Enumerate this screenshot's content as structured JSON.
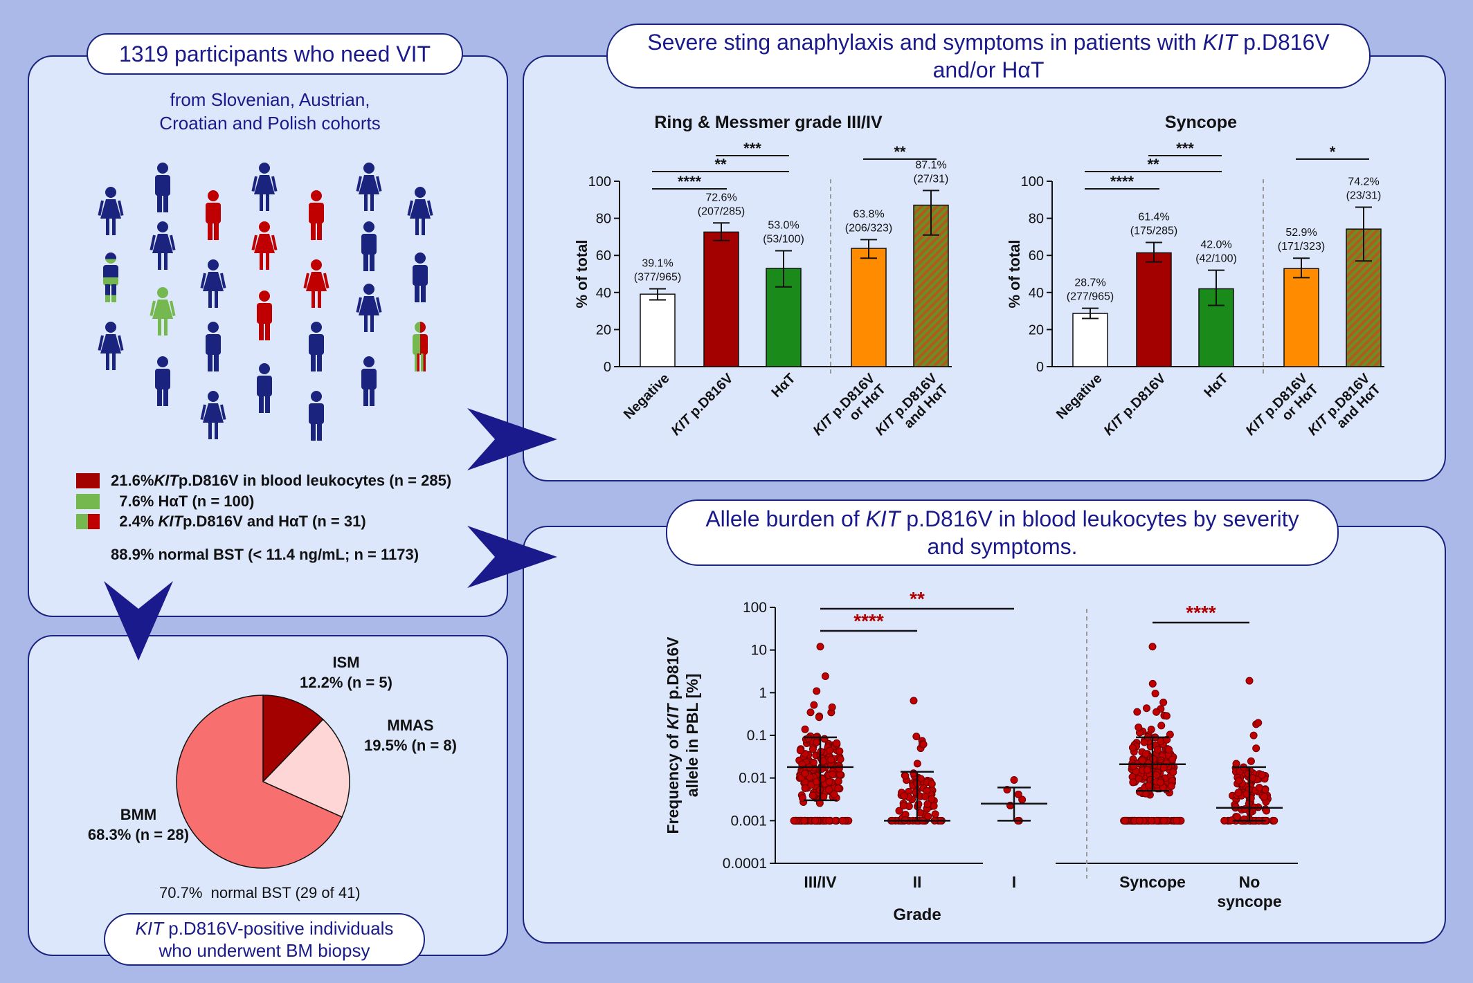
{
  "colors": {
    "background": "#aab9e8",
    "panel": "#dde7fb",
    "navy": "#1a237e",
    "kit": "#a30000",
    "hat": "#1a8a1a",
    "hat_light": "#74b84f",
    "orange": "#ff8c00",
    "pie_bmm": "#f86f6f",
    "pie_ism": "#a30000",
    "pie_mmas": "#ffd6d6"
  },
  "left_top": {
    "title": "1319 participants who need VIT",
    "subtitle_line1": "from Slovenian, Austrian,",
    "subtitle_line2": "Croatian and Polish cohorts",
    "legend": [
      {
        "prefix": "21.6% ",
        "italic": "KIT",
        "text": " p.D816V in blood leukocytes  (n = 285)"
      },
      {
        "prefix": "  7.6% HαT (n = 100)",
        "italic": "",
        "text": ""
      },
      {
        "prefix": "  2.4% ",
        "italic": "KIT",
        "text": " p.D816V and HαT (n = 31)"
      }
    ],
    "normal_bst": "88.9% normal BST (< 11.4 ng/mL; n = 1173)"
  },
  "left_bottom": {
    "title_italic": "KIT",
    "title_rest": " p.D816V-positive individuals",
    "title_line2": "who underwent BM biopsy",
    "normal_bst": "70.7%  normal BST (29 of 41)",
    "pie_labels": {
      "ism_name": "ISM",
      "ism_value": "12.2% (n = 5)",
      "mmas_name": "MMAS",
      "mmas_value": "19.5% (n = 8)",
      "bmm_name": "BMM",
      "bmm_value": "68.3% (n = 28)"
    }
  },
  "right_top": {
    "title_line1_a": "Severe sting anaphylaxis and symptoms in patients with ",
    "title_line1_italic": "KIT",
    "title_line1_b": " p.D816V",
    "title_line2": "and/or HαT"
  },
  "right_bottom": {
    "title_line1_a": "Allele burden of ",
    "title_line1_italic": "KIT",
    "title_line1_b": " p.D816V in blood leukocytes by severity",
    "title_line2": "and symptoms."
  },
  "chart_data": [
    {
      "type": "bar",
      "title": "Ring & Messmer grade III/IV",
      "ylabel": "% of total",
      "ylim": [
        0,
        100
      ],
      "yticks": [
        "0",
        "20",
        "40",
        "60",
        "80",
        "100"
      ],
      "categories": [
        "Negative",
        "KIT p.D816V",
        "HαT",
        "KIT p.D816V or HαT",
        "KIT p.D816V and HαT"
      ],
      "values": [
        39.1,
        72.6,
        53.0,
        63.8,
        87.1
      ],
      "error": [
        [
          36,
          42
        ],
        [
          68,
          77.5
        ],
        [
          43,
          62.5
        ],
        [
          58.5,
          68.5
        ],
        [
          71,
          95
        ]
      ],
      "pct_labels": [
        "39.1%",
        "72.6%",
        "53.0%",
        "63.8%",
        "87.1%"
      ],
      "n_labels": [
        "(377/965)",
        "(207/285)",
        "(53/100)",
        "(206/323)",
        "(27/31)"
      ],
      "significance": [
        {
          "label": "***",
          "from": 1,
          "to": 2
        },
        {
          "label": "**",
          "from": 0,
          "to": 2
        },
        {
          "label": "****",
          "from": 0,
          "to": 1
        },
        {
          "label": "**",
          "from": 3,
          "to": 4
        }
      ]
    },
    {
      "type": "bar",
      "title": "Syncope",
      "ylabel": "% of total",
      "ylim": [
        0,
        100
      ],
      "yticks": [
        "0",
        "20",
        "40",
        "60",
        "80",
        "100"
      ],
      "categories": [
        "Negative",
        "KIT p.D816V",
        "HαT",
        "KIT p.D816V or HαT",
        "KIT p.D816V and HαT"
      ],
      "values": [
        28.7,
        61.4,
        42.0,
        52.9,
        74.2
      ],
      "error": [
        [
          26,
          31.5
        ],
        [
          56.5,
          67
        ],
        [
          33,
          52
        ],
        [
          48,
          58.5
        ],
        [
          57,
          86
        ]
      ],
      "pct_labels": [
        "28.7%",
        "61.4%",
        "42.0%",
        "52.9%",
        "74.2%"
      ],
      "n_labels": [
        "(277/965)",
        "(175/285)",
        "(42/100)",
        "(171/323)",
        "(23/31)"
      ],
      "significance": [
        {
          "label": "***",
          "from": 1,
          "to": 2
        },
        {
          "label": "**",
          "from": 0,
          "to": 2
        },
        {
          "label": "****",
          "from": 0,
          "to": 1
        },
        {
          "label": "*",
          "from": 3,
          "to": 4
        }
      ]
    },
    {
      "type": "scatter",
      "ylabel_line1": "Frequency of KIT p.D816V",
      "ylabel_line2": "allele in PBL [%]",
      "xlabel": "Grade",
      "yscale": "log",
      "ylim": [
        0.0001,
        100
      ],
      "yticks": [
        "0.0001",
        "0.001",
        "0.01",
        "0.1",
        "1",
        "10",
        "100"
      ],
      "groups": [
        {
          "label": "III/IV",
          "median": 0.018,
          "q1": 0.003,
          "q3": 0.09,
          "max": 12
        },
        {
          "label": "II",
          "median": 0.001,
          "q1": 0.001,
          "q3": 0.014,
          "max": 0.65
        },
        {
          "label": "I",
          "median": 0.0025,
          "q1": 0.001,
          "q3": 0.006,
          "max": 0.009
        },
        {
          "label": "Syncope",
          "median": 0.021,
          "q1": 0.005,
          "q3": 0.09,
          "max": 12
        },
        {
          "label": "No syncope",
          "median": 0.002,
          "q1": 0.001,
          "q3": 0.018,
          "max": 1.9
        }
      ],
      "significance": [
        {
          "label": "**",
          "from": 0,
          "to": 2
        },
        {
          "label": "****",
          "from": 0,
          "to": 1
        },
        {
          "label": "****",
          "from": 3,
          "to": 4
        }
      ]
    },
    {
      "type": "pie",
      "labels": [
        "ISM",
        "MMAS",
        "BMM"
      ],
      "values": [
        12.2,
        19.5,
        68.3
      ]
    }
  ]
}
